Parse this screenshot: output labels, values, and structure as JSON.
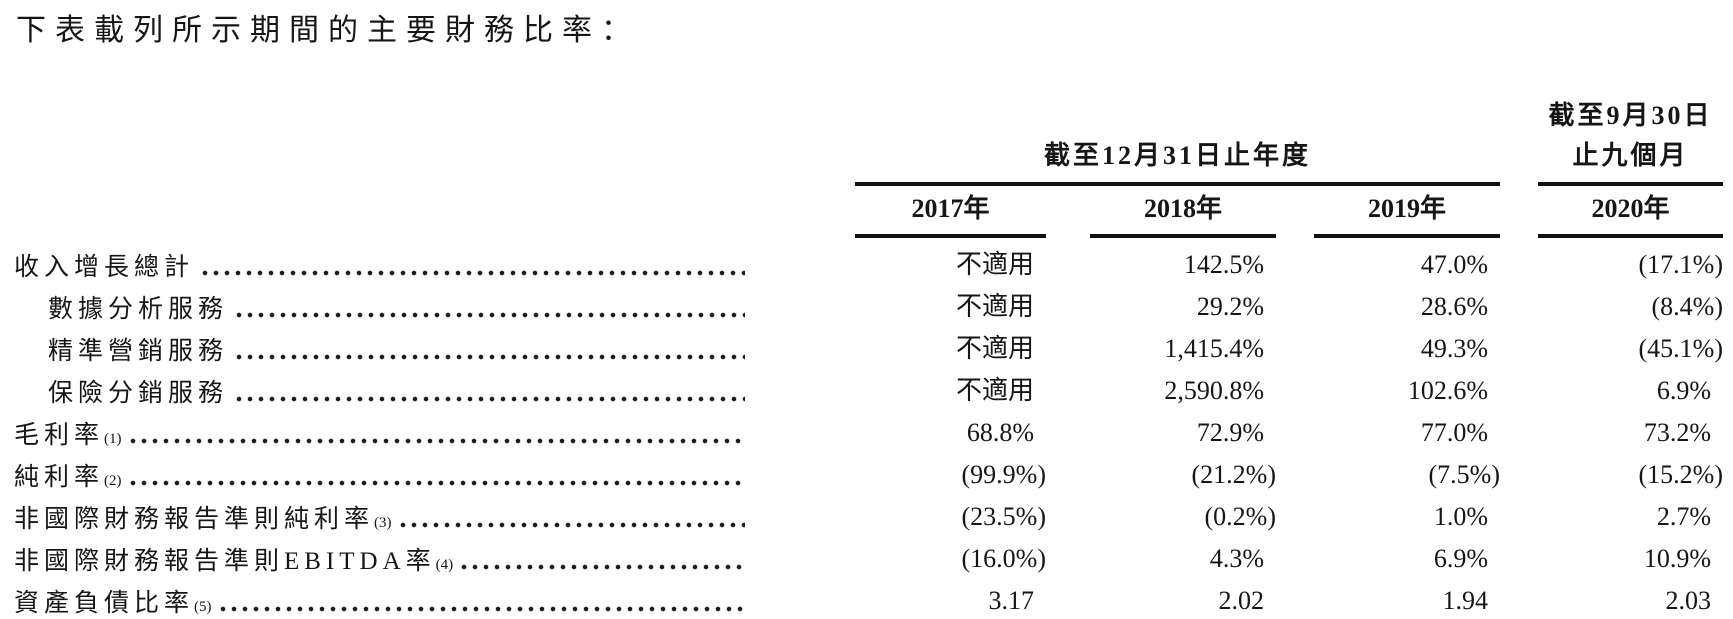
{
  "title": "下表載列所示期間的主要財務比率：",
  "colors": {
    "text": "#161616",
    "rule": "#111111",
    "background": "#ffffff"
  },
  "table": {
    "group1": {
      "label": "截至12月31日止年度"
    },
    "group2": {
      "line1": "截至9月30日",
      "line2": "止九個月"
    },
    "columns": [
      "2017年",
      "2018年",
      "2019年",
      "2020年"
    ],
    "rows": [
      {
        "label": "收入增長總計",
        "sup": "",
        "indent": false,
        "values": [
          "不適用",
          "142.5%",
          "47.0%",
          "(17.1%)"
        ]
      },
      {
        "label": "數據分析服務",
        "sup": "",
        "indent": true,
        "values": [
          "不適用",
          "29.2%",
          "28.6%",
          "(8.4%)"
        ]
      },
      {
        "label": "精準營銷服務",
        "sup": "",
        "indent": true,
        "values": [
          "不適用",
          "1,415.4%",
          "49.3%",
          "(45.1%)"
        ]
      },
      {
        "label": "保險分銷服務",
        "sup": "",
        "indent": true,
        "values": [
          "不適用",
          "2,590.8%",
          "102.6%",
          "6.9%"
        ]
      },
      {
        "label": "毛利率",
        "sup": "(1)",
        "indent": false,
        "values": [
          "68.8%",
          "72.9%",
          "77.0%",
          "73.2%"
        ]
      },
      {
        "label": "純利率",
        "sup": "(2)",
        "indent": false,
        "values": [
          "(99.9%)",
          "(21.2%)",
          "(7.5%)",
          "(15.2%)"
        ]
      },
      {
        "label": "非國際財務報告準則純利率",
        "sup": "(3)",
        "indent": false,
        "values": [
          "(23.5%)",
          "(0.2%)",
          "1.0%",
          "2.7%"
        ]
      },
      {
        "label": "非國際財務報告準則EBITDA率",
        "sup": "(4)",
        "indent": false,
        "values": [
          "(16.0%)",
          "4.3%",
          "6.9%",
          "10.9%"
        ]
      },
      {
        "label": "資產負債比率",
        "sup": "(5)",
        "indent": false,
        "values": [
          "3.17",
          "2.02",
          "1.94",
          "2.03"
        ]
      }
    ]
  }
}
